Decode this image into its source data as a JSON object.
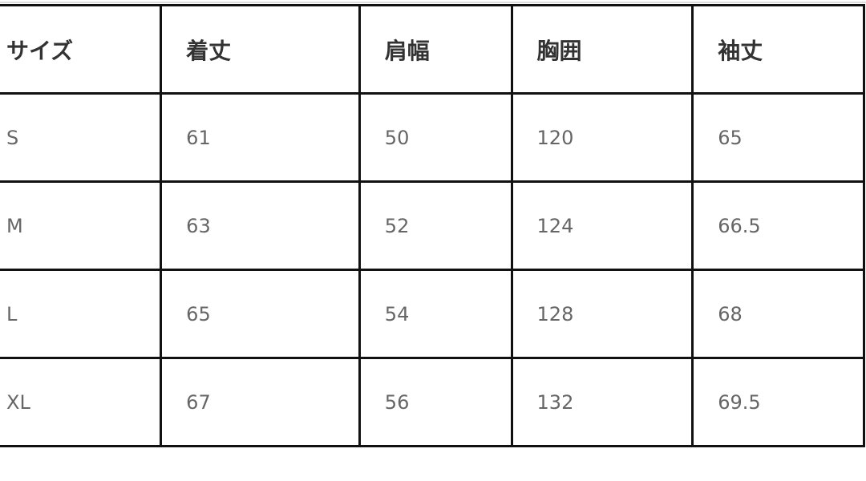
{
  "table": {
    "headers": [
      "サイズ",
      "着丈",
      "肩幅",
      "胸囲",
      "袖丈"
    ],
    "rows": [
      [
        "S",
        "61",
        "50",
        "120",
        "65"
      ],
      [
        "M",
        "63",
        "52",
        "124",
        "66.5"
      ],
      [
        "L",
        "65",
        "54",
        "128",
        "68"
      ],
      [
        "XL",
        "67",
        "56",
        "132",
        "69.5"
      ]
    ]
  }
}
